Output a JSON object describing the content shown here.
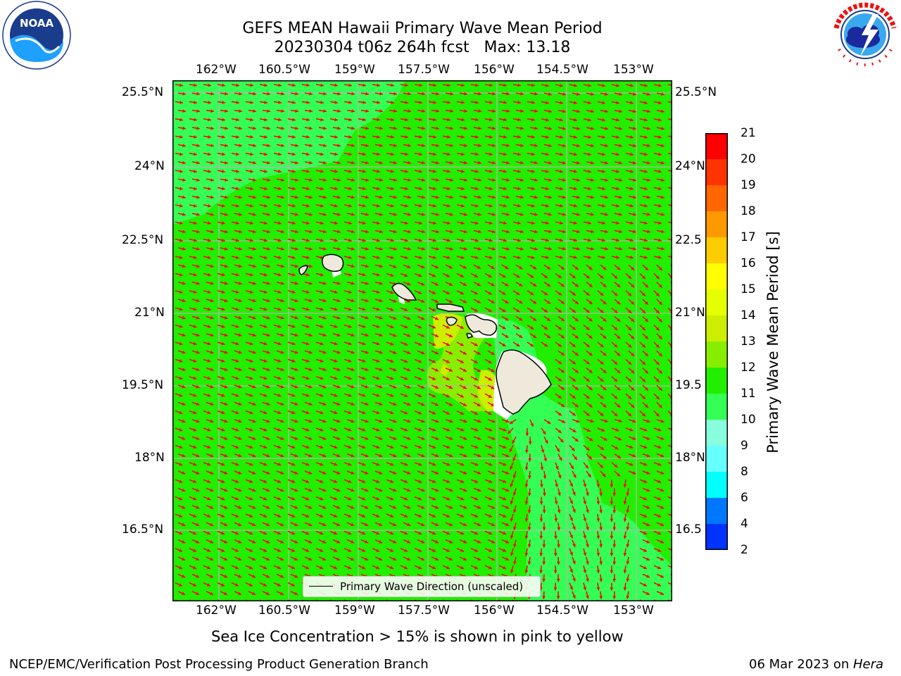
{
  "title": {
    "line1": "GEFS MEAN Hawaii Primary Wave Mean Period",
    "line2": "20230304 t06z 264h fcst   Max: 13.18"
  },
  "logos": {
    "left": {
      "icon": "noaa-logo",
      "text": "NOAA",
      "ring_text": "NATIONAL OCEANIC AND ATMOSPHERIC ADMINISTRATION · U.S. DEPARTMENT OF COMMERCE"
    },
    "right": {
      "icon": "national-weather-service-logo",
      "ring_text": "NATIONAL WEATHER SERVICE"
    }
  },
  "map": {
    "lon_labels": [
      "162°W",
      "160.5°W",
      "159°W",
      "157.5°W",
      "156°W",
      "154.5°W",
      "153°W"
    ],
    "lat_labels": [
      "25.5°N",
      "24°N",
      "22.5°N",
      "21°N",
      "19.5°N",
      "18°N",
      "16.5°N"
    ],
    "lat_labels_right": [
      "25.5°N",
      "24°N",
      "22.5",
      "21°N",
      "19.5",
      "18°N",
      "16.5"
    ],
    "colors": {
      "ocean_11_12": "#22ee00",
      "ocean_10_11": "#33ff55",
      "ocean_12_13": "#88ee00",
      "ocean_13_14": "#ccee00",
      "land": "#efe9dc",
      "arrow": "#ff0000",
      "grid": "#b4b4b4"
    }
  },
  "legend": {
    "label": "Primary Wave Direction (unscaled)"
  },
  "colorbar": {
    "label": "Primary Wave Mean Period [s]",
    "ticks": [
      "21",
      "20",
      "19",
      "18",
      "17",
      "16",
      "15",
      "14",
      "13",
      "12",
      "11",
      "10",
      "9",
      "8",
      "6",
      "4",
      "2"
    ],
    "colors": [
      "#ff0000",
      "#ff3300",
      "#ff6600",
      "#ff9900",
      "#ffcc00",
      "#ffff00",
      "#e5ff00",
      "#ccee00",
      "#88ee00",
      "#22ee00",
      "#33ff55",
      "#88ffdd",
      "#66ffff",
      "#00ffff",
      "#0077ff",
      "#0033ff"
    ]
  },
  "note": "Sea Ice Concentration > 15% is shown in pink to yellow",
  "footer": {
    "left": "NCEP/EMC/Verification Post Processing Product Generation Branch",
    "right_date": "06 Mar 2023 on ",
    "right_machine": "Hera"
  }
}
